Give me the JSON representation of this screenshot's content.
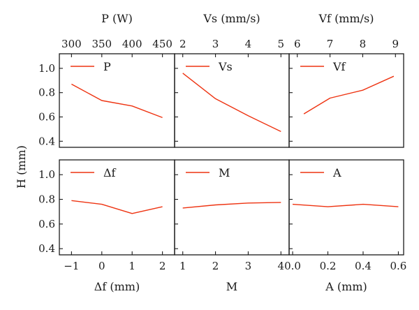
{
  "figure": {
    "ylabel": "H (mm)",
    "line_color": "#ee3311"
  },
  "chart_data": [
    {
      "type": "line",
      "name": "P",
      "xlabel": "P (W)",
      "xlabel_position": "top",
      "x": [
        300,
        350,
        400,
        450
      ],
      "y": [
        0.87,
        0.735,
        0.69,
        0.595
      ],
      "xticks": [
        "300",
        "350",
        "400",
        "450"
      ],
      "xtick_values": [
        300,
        350,
        400,
        450
      ],
      "xlim": [
        280,
        470
      ],
      "ylim": [
        0.35,
        1.12
      ],
      "yticks": [
        "0.4",
        "0.6",
        "0.8",
        "1.0"
      ],
      "ytick_values": [
        0.4,
        0.6,
        0.8,
        1.0
      ],
      "legend": "P",
      "grid": false
    },
    {
      "type": "line",
      "name": "Vs",
      "xlabel": "Vs (mm/s)",
      "xlabel_position": "top",
      "x": [
        2,
        3,
        4,
        5
      ],
      "y": [
        0.96,
        0.75,
        0.61,
        0.48
      ],
      "xticks": [
        "2",
        "3",
        "4",
        "5"
      ],
      "xtick_values": [
        2,
        3,
        4,
        5
      ],
      "xlim": [
        1.75,
        5.25
      ],
      "ylim": [
        0.35,
        1.12
      ],
      "yticks": [],
      "ytick_values": [
        0.4,
        0.6,
        0.8,
        1.0
      ],
      "legend": "Vs",
      "grid": false
    },
    {
      "type": "line",
      "name": "Vf",
      "xlabel": "Vf (mm/s)",
      "xlabel_position": "top",
      "x": [
        6.2,
        7,
        8,
        8.95
      ],
      "y": [
        0.625,
        0.755,
        0.82,
        0.935
      ],
      "xticks": [
        "6",
        "7",
        "8",
        "9"
      ],
      "xtick_values": [
        6,
        7,
        8,
        9
      ],
      "xlim": [
        5.75,
        9.25
      ],
      "ylim": [
        0.35,
        1.12
      ],
      "yticks": [],
      "ytick_values": [
        0.4,
        0.6,
        0.8,
        1.0
      ],
      "legend": "Vf",
      "grid": false
    },
    {
      "type": "line",
      "name": "Δf",
      "xlabel": "Δf (mm)",
      "xlabel_position": "bottom",
      "x": [
        -1,
        0,
        1,
        2
      ],
      "y": [
        0.79,
        0.76,
        0.685,
        0.74
      ],
      "xticks": [
        "−1",
        "0",
        "1",
        "2"
      ],
      "xtick_values": [
        -1,
        0,
        1,
        2
      ],
      "xlim": [
        -1.4,
        2.4
      ],
      "ylim": [
        0.35,
        1.12
      ],
      "yticks": [
        "0.4",
        "0.6",
        "0.8",
        "1.0"
      ],
      "ytick_values": [
        0.4,
        0.6,
        0.8,
        1.0
      ],
      "legend": "Δf",
      "grid": false
    },
    {
      "type": "line",
      "name": "M",
      "xlabel": "M",
      "xlabel_position": "bottom",
      "x": [
        1,
        2,
        3,
        4
      ],
      "y": [
        0.73,
        0.755,
        0.77,
        0.775
      ],
      "xticks": [
        "1",
        "2",
        "3",
        "4"
      ],
      "xtick_values": [
        1,
        2,
        3,
        4
      ],
      "xlim": [
        0.75,
        4.25
      ],
      "ylim": [
        0.35,
        1.12
      ],
      "yticks": [],
      "ytick_values": [
        0.4,
        0.6,
        0.8,
        1.0
      ],
      "legend": "M",
      "grid": false
    },
    {
      "type": "line",
      "name": "A",
      "xlabel": "A (mm)",
      "xlabel_position": "bottom",
      "x": [
        0.0,
        0.2,
        0.4,
        0.6
      ],
      "y": [
        0.76,
        0.74,
        0.76,
        0.74
      ],
      "xticks": [
        "0.0",
        "0.2",
        "0.4",
        "0.6"
      ],
      "xtick_values": [
        0.0,
        0.2,
        0.4,
        0.6
      ],
      "xlim": [
        -0.02,
        0.63
      ],
      "ylim": [
        0.35,
        1.12
      ],
      "yticks": [],
      "ytick_values": [
        0.4,
        0.6,
        0.8,
        1.0
      ],
      "legend": "A",
      "grid": false
    }
  ]
}
